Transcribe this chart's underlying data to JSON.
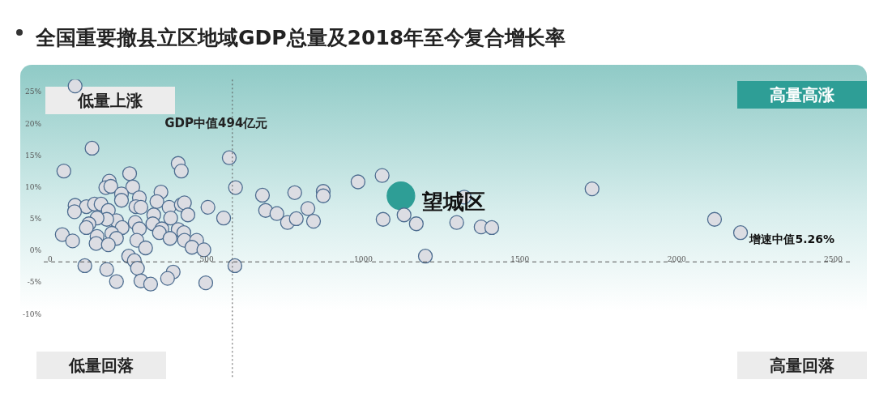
{
  "chart_data": {
    "type": "scatter",
    "title": "全国重要撤县立区地域GDP总量及2018年至今复合增长率",
    "xlim": [
      -20,
      2560
    ],
    "ylim": [
      -20,
      27
    ],
    "xticks": [
      0,
      500,
      1000,
      1500,
      2000,
      2500
    ],
    "yticks": [
      {
        "value": 25,
        "label": "25%"
      },
      {
        "value": 20,
        "label": "20%"
      },
      {
        "value": 15,
        "label": "15%"
      },
      {
        "value": 10,
        "label": "10%"
      },
      {
        "value": 5,
        "label": "5%"
      },
      {
        "value": 0,
        "label": "0%"
      },
      {
        "value": -5,
        "label": "-5%"
      },
      {
        "value": -10,
        "label": "-10%"
      }
    ],
    "grid": false,
    "legend": false,
    "marker": "circle",
    "ref_lines": [
      {
        "axis": "x",
        "value": 582,
        "label": "GDP中值494亿元",
        "line_style": "dotted",
        "color": "#555555"
      },
      {
        "axis": "y",
        "value": -1.7,
        "label": null,
        "line_style": "dashed",
        "color": "#555555"
      }
    ],
    "annotations": [
      "低量上涨",
      "高量高涨",
      "低量回落",
      "高量回落",
      "增速中值5.26%"
    ],
    "series": [
      {
        "color": "#dcdde3",
        "x": [
          80,
          134,
          44,
          572,
          592,
          409,
          419,
          254,
          189,
          178,
          194,
          264,
          354,
          228,
          285,
          228,
          80,
          116,
          142,
          163,
          78,
          186,
          274,
          290,
          341,
          380,
          419,
          429,
          440,
          504,
          554,
          331,
          385,
          212,
          181,
          150,
          124,
          116,
          230,
          272,
          285,
          328,
          357,
          349,
          409,
          427,
          150,
          197,
          212,
          39,
          72,
          147,
          186,
          277,
          305,
          383,
          429,
          468,
          453,
          491,
          251,
          269,
          111,
          279,
          181,
          393,
          375,
          212,
          290,
          321,
          497,
          590,
          678,
          688,
          724,
          781,
          758,
          786,
          823,
          841,
          872,
          872,
          983,
          1060,
          1063,
          1130,
          1169,
          1198,
          1322,
          1298,
          1376,
          1410,
          1730,
          2121,
          2204
        ],
        "values": [
          26.0,
          16.2,
          12.6,
          14.7,
          10.0,
          13.8,
          12.6,
          12.2,
          11.0,
          10.0,
          10.2,
          10.1,
          9.3,
          9.0,
          8.4,
          8.0,
          7.2,
          7.0,
          7.4,
          7.4,
          6.2,
          6.4,
          7.0,
          6.9,
          7.8,
          6.9,
          7.3,
          7.6,
          5.7,
          6.9,
          5.2,
          5.7,
          5.2,
          4.8,
          5.0,
          5.2,
          4.3,
          3.7,
          3.7,
          4.5,
          3.5,
          4.3,
          3.5,
          2.9,
          3.4,
          2.9,
          2.3,
          2.8,
          2.0,
          2.6,
          1.6,
          1.2,
          1.0,
          1.7,
          0.5,
          2.0,
          1.7,
          1.7,
          0.6,
          0.2,
          -0.8,
          -1.5,
          -2.3,
          -2.7,
          -2.9,
          -3.3,
          -4.3,
          -4.8,
          -4.7,
          -5.2,
          -5.0,
          -2.3,
          8.8,
          6.4,
          5.9,
          9.2,
          4.5,
          5.1,
          6.7,
          4.7,
          9.4,
          8.7,
          10.9,
          11.9,
          5.0,
          5.7,
          4.3,
          -0.8,
          8.5,
          4.5,
          3.8,
          3.7,
          9.8,
          5.0,
          2.9
        ]
      },
      {
        "name": "望城区",
        "color": "#2e9e96",
        "x": [
          1120
        ],
        "values": [
          8.7
        ]
      }
    ]
  }
}
